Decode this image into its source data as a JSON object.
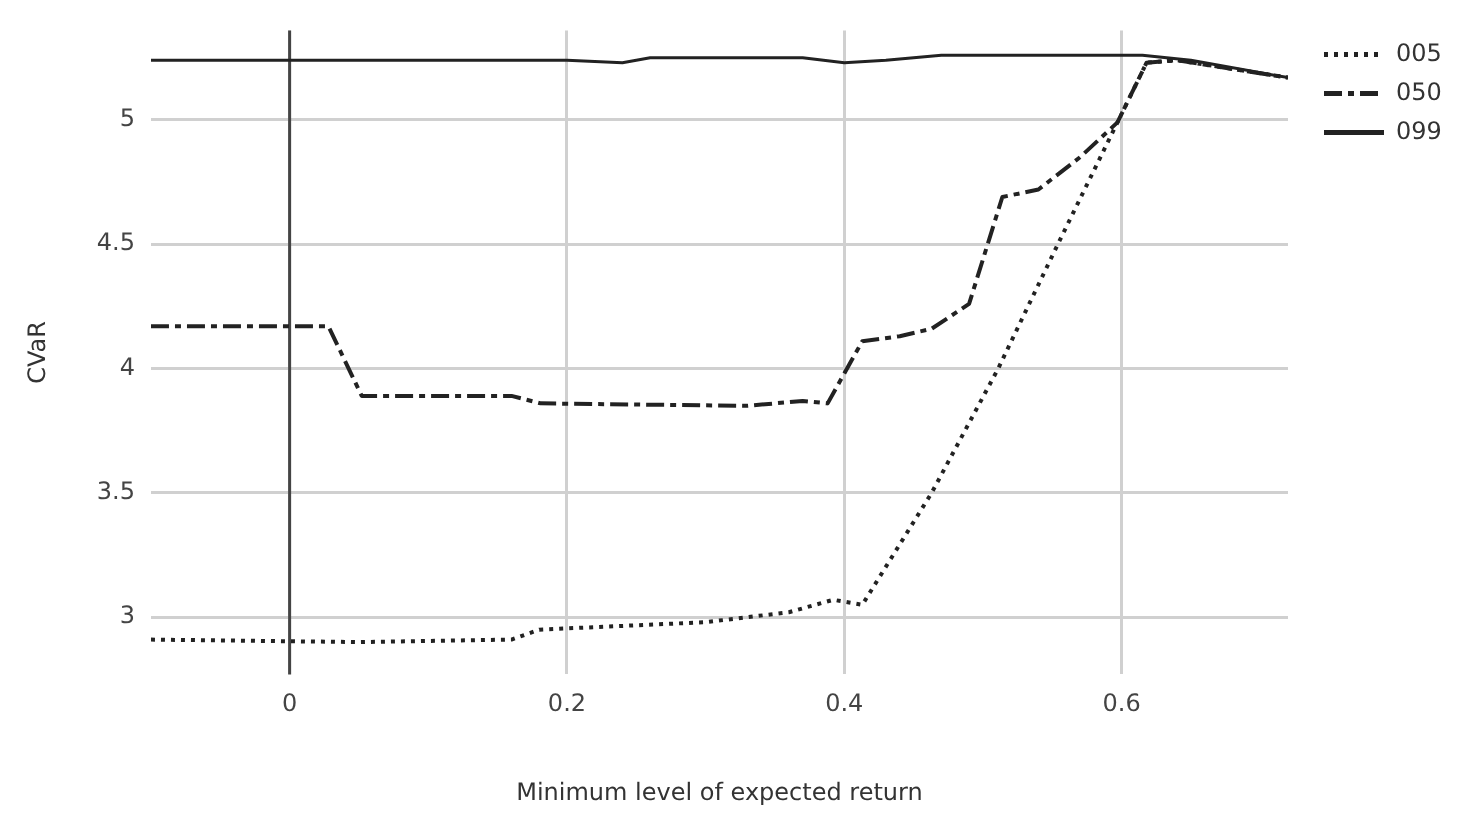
{
  "chart_data": {
    "type": "line",
    "xlabel": "Minimum level of expected return",
    "ylabel": "CVaR",
    "xlim": [
      -0.1,
      0.72
    ],
    "ylim": [
      2.77,
      5.36
    ],
    "xticks": [
      0,
      0.2,
      0.4,
      0.6
    ],
    "yticks": [
      3,
      3.5,
      4,
      4.5,
      5
    ],
    "grid": true,
    "legend": "top right",
    "marker": "none",
    "ref_lines": [
      {
        "axis": "x",
        "value": 0,
        "color": "#444444"
      }
    ],
    "series": [
      {
        "name": "005",
        "color": "#222222",
        "line_style": "dotted",
        "x": [
          -0.1,
          0.05,
          0.16,
          0.18,
          0.3,
          0.36,
          0.392,
          0.413,
          0.463,
          0.511,
          0.554,
          0.597,
          0.618,
          0.64,
          0.72
        ],
        "values": [
          2.91,
          2.9,
          2.91,
          2.95,
          2.98,
          3.02,
          3.07,
          3.05,
          3.5,
          4.0,
          4.5,
          4.99,
          5.23,
          5.24,
          5.17
        ]
      },
      {
        "name": "050",
        "color": "#222222",
        "line_style": "dashed",
        "x": [
          -0.1,
          0.028,
          0.052,
          0.16,
          0.181,
          0.33,
          0.37,
          0.388,
          0.413,
          0.44,
          0.463,
          0.49,
          0.514,
          0.54,
          0.57,
          0.597,
          0.618,
          0.64,
          0.72
        ],
        "values": [
          4.17,
          4.17,
          3.89,
          3.89,
          3.86,
          3.85,
          3.87,
          3.86,
          4.11,
          4.13,
          4.16,
          4.26,
          4.69,
          4.72,
          4.85,
          4.99,
          5.23,
          5.24,
          5.17
        ]
      },
      {
        "name": "099",
        "color": "#222222",
        "line_style": "solid",
        "x": [
          -0.1,
          0.06,
          0.2,
          0.24,
          0.26,
          0.37,
          0.4,
          0.43,
          0.47,
          0.615,
          0.65,
          0.72
        ],
        "values": [
          5.24,
          5.24,
          5.24,
          5.23,
          5.25,
          5.25,
          5.23,
          5.24,
          5.26,
          5.26,
          5.24,
          5.17
        ]
      }
    ]
  }
}
